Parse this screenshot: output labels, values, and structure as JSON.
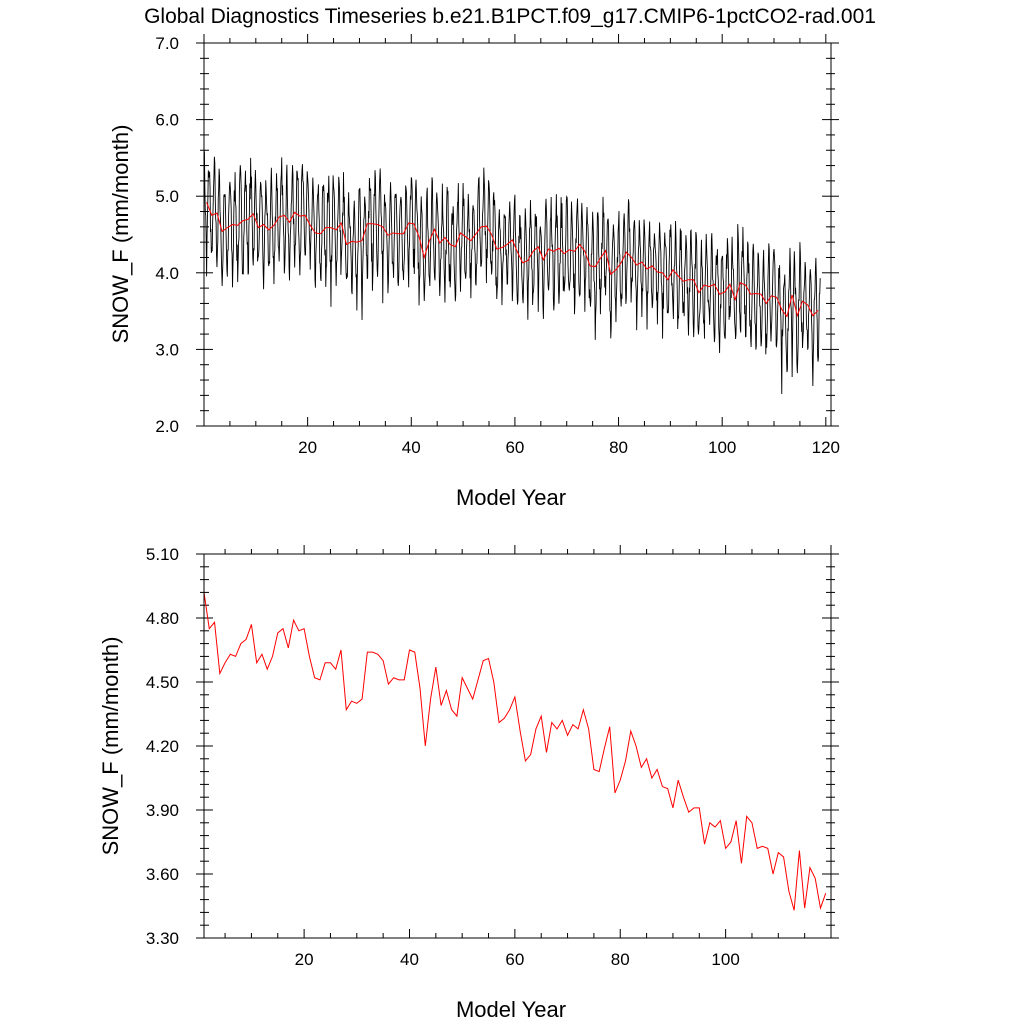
{
  "figure_title": "Global Diagnostics Timeseries b.e21.B1PCT.f09_g17.CMIP6-1pctCO2-rad.001",
  "colors": {
    "monthly": "#000000",
    "annual": "#ff0000",
    "axis": "#000000"
  },
  "chart_data": [
    {
      "type": "line",
      "title": "",
      "xlabel": "Model Year",
      "ylabel": "SNOW_F (mm/month)",
      "xlim": [
        0,
        121
      ],
      "ylim": [
        2.0,
        7.0
      ],
      "x_ticks": [
        20,
        40,
        60,
        80,
        100,
        120
      ],
      "y_ticks": [
        "2.0",
        "3.0",
        "4.0",
        "5.0",
        "6.0",
        "7.0"
      ],
      "grid": false,
      "legend": "none",
      "series": [
        {
          "role": "monthly",
          "color": "#000000",
          "x_start": 0,
          "x_step": 0.08333,
          "seasonal_amplitude": 0.55,
          "note_monthly_values": "monthly cycle around annual mean; extremes approx: max 5.6 near year 40, min 2.25 near year 119",
          "annual_means": [
            4.92,
            4.75,
            4.78,
            4.54,
            4.59,
            4.63,
            4.62,
            4.68,
            4.7,
            4.77,
            4.59,
            4.63,
            4.56,
            4.62,
            4.73,
            4.75,
            4.66,
            4.79,
            4.74,
            4.75,
            4.62,
            4.52,
            4.51,
            4.59,
            4.59,
            4.56,
            4.65,
            4.37,
            4.41,
            4.4,
            4.42,
            4.64,
            4.64,
            4.63,
            4.6,
            4.49,
            4.52,
            4.51,
            4.51,
            4.65,
            4.64,
            4.47,
            4.2,
            4.42,
            4.57,
            4.39,
            4.46,
            4.37,
            4.34,
            4.52,
            4.47,
            4.42,
            4.51,
            4.6,
            4.61,
            4.5,
            4.31,
            4.33,
            4.37,
            4.43,
            4.27,
            4.13,
            4.16,
            4.28,
            4.34,
            4.17,
            4.31,
            4.28,
            4.32,
            4.25,
            4.3,
            4.28,
            4.37,
            4.28,
            4.09,
            4.08,
            4.19,
            4.29,
            3.98,
            4.04,
            4.13,
            4.27,
            4.2,
            4.1,
            4.14,
            4.05,
            4.09,
            4.01,
            4.0,
            3.91,
            4.04,
            3.96,
            3.89,
            3.91,
            3.91,
            3.74,
            3.84,
            3.82,
            3.85,
            3.72,
            3.75,
            3.85,
            3.65,
            3.87,
            3.84,
            3.72,
            3.73,
            3.72,
            3.6,
            3.7,
            3.68,
            3.52,
            3.43,
            3.71,
            3.44,
            3.63,
            3.58,
            3.44,
            3.51
          ]
        },
        {
          "role": "annual",
          "color": "#ff0000",
          "x_start": 0.5,
          "x_step": 1,
          "values": [
            4.92,
            4.75,
            4.78,
            4.54,
            4.59,
            4.63,
            4.62,
            4.68,
            4.7,
            4.77,
            4.59,
            4.63,
            4.56,
            4.62,
            4.73,
            4.75,
            4.66,
            4.79,
            4.74,
            4.75,
            4.62,
            4.52,
            4.51,
            4.59,
            4.59,
            4.56,
            4.65,
            4.37,
            4.41,
            4.4,
            4.42,
            4.64,
            4.64,
            4.63,
            4.6,
            4.49,
            4.52,
            4.51,
            4.51,
            4.65,
            4.64,
            4.47,
            4.2,
            4.42,
            4.57,
            4.39,
            4.46,
            4.37,
            4.34,
            4.52,
            4.47,
            4.42,
            4.51,
            4.6,
            4.61,
            4.5,
            4.31,
            4.33,
            4.37,
            4.43,
            4.27,
            4.13,
            4.16,
            4.28,
            4.34,
            4.17,
            4.31,
            4.28,
            4.32,
            4.25,
            4.3,
            4.28,
            4.37,
            4.28,
            4.09,
            4.08,
            4.19,
            4.29,
            3.98,
            4.04,
            4.13,
            4.27,
            4.2,
            4.1,
            4.14,
            4.05,
            4.09,
            4.01,
            4.0,
            3.91,
            4.04,
            3.96,
            3.89,
            3.91,
            3.91,
            3.74,
            3.84,
            3.82,
            3.85,
            3.72,
            3.75,
            3.85,
            3.65,
            3.87,
            3.84,
            3.72,
            3.73,
            3.72,
            3.6,
            3.7,
            3.68,
            3.52,
            3.43,
            3.71,
            3.44,
            3.63,
            3.58,
            3.44,
            3.51
          ]
        }
      ]
    },
    {
      "type": "line",
      "title": "",
      "xlabel": "Model Year",
      "ylabel": "SNOW_F (mm/month)",
      "xlim": [
        1,
        120
      ],
      "ylim": [
        3.3,
        5.1
      ],
      "x_ticks": [
        20,
        40,
        60,
        80,
        100
      ],
      "y_ticks": [
        "3.30",
        "3.60",
        "3.90",
        "4.20",
        "4.50",
        "4.80",
        "5.10"
      ],
      "grid": false,
      "legend": "none",
      "series": [
        {
          "role": "annual",
          "color": "#ff0000",
          "x_start": 1,
          "x_step": 1,
          "values": [
            4.92,
            4.75,
            4.78,
            4.54,
            4.59,
            4.63,
            4.62,
            4.68,
            4.7,
            4.77,
            4.59,
            4.63,
            4.56,
            4.62,
            4.73,
            4.75,
            4.66,
            4.79,
            4.74,
            4.75,
            4.62,
            4.52,
            4.51,
            4.59,
            4.59,
            4.56,
            4.65,
            4.37,
            4.41,
            4.4,
            4.42,
            4.64,
            4.64,
            4.63,
            4.6,
            4.49,
            4.52,
            4.51,
            4.51,
            4.65,
            4.64,
            4.47,
            4.2,
            4.42,
            4.57,
            4.39,
            4.46,
            4.37,
            4.34,
            4.52,
            4.47,
            4.42,
            4.51,
            4.6,
            4.61,
            4.5,
            4.31,
            4.33,
            4.37,
            4.43,
            4.27,
            4.13,
            4.16,
            4.28,
            4.34,
            4.17,
            4.31,
            4.28,
            4.32,
            4.25,
            4.3,
            4.28,
            4.37,
            4.28,
            4.09,
            4.08,
            4.19,
            4.29,
            3.98,
            4.04,
            4.13,
            4.27,
            4.2,
            4.1,
            4.14,
            4.05,
            4.09,
            4.01,
            4.0,
            3.91,
            4.04,
            3.96,
            3.89,
            3.91,
            3.91,
            3.74,
            3.84,
            3.82,
            3.85,
            3.72,
            3.75,
            3.85,
            3.65,
            3.87,
            3.84,
            3.72,
            3.73,
            3.72,
            3.6,
            3.7,
            3.68,
            3.52,
            3.43,
            3.71,
            3.44,
            3.63,
            3.58,
            3.44,
            3.51
          ]
        }
      ]
    }
  ]
}
